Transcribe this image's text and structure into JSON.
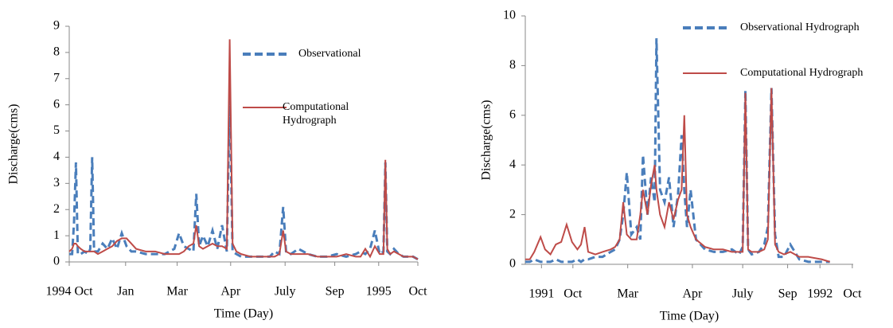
{
  "chart_data": [
    {
      "type": "line",
      "ylabel": "Discharge(cms)",
      "xlabel": "Time (Day)",
      "xlim": [
        0,
        365
      ],
      "ylim": [
        0,
        9
      ],
      "yticks": [
        0,
        1,
        2,
        3,
        4,
        5,
        6,
        7,
        8,
        9
      ],
      "xticks": [
        {
          "value": 0,
          "label": "1994 Oct"
        },
        {
          "value": 59,
          "label": "Jan"
        },
        {
          "value": 113,
          "label": "Mar"
        },
        {
          "value": 169,
          "label": "Apr"
        },
        {
          "value": 226,
          "label": "July"
        },
        {
          "value": 278,
          "label": "Sep"
        },
        {
          "value": 324,
          "label": "1995"
        },
        {
          "value": 365,
          "label": "Oct"
        }
      ],
      "x": [
        0,
        3,
        5,
        7,
        9,
        12,
        16,
        20,
        22,
        24,
        26,
        30,
        35,
        40,
        45,
        50,
        55,
        60,
        65,
        70,
        80,
        90,
        100,
        110,
        115,
        120,
        125,
        130,
        133,
        136,
        140,
        145,
        150,
        155,
        160,
        165,
        168,
        171,
        175,
        180,
        190,
        200,
        210,
        215,
        220,
        224,
        227,
        232,
        240,
        250,
        260,
        270,
        280,
        290,
        300,
        305,
        310,
        315,
        320,
        325,
        329,
        331,
        333,
        336,
        340,
        345,
        350,
        355,
        360,
        365
      ],
      "series": [
        {
          "name": "Observational",
          "color": "#4a7ebb",
          "dashed": true,
          "values": [
            0.3,
            0.3,
            1.5,
            3.8,
            0.3,
            0.3,
            0.4,
            0.3,
            0.5,
            4.0,
            0.4,
            0.4,
            0.7,
            0.5,
            0.9,
            0.5,
            1.1,
            0.6,
            0.4,
            0.4,
            0.3,
            0.3,
            0.3,
            0.5,
            1.1,
            0.6,
            0.5,
            0.4,
            2.6,
            0.6,
            1.0,
            0.6,
            1.2,
            0.5,
            1.4,
            0.4,
            6.4,
            0.4,
            0.3,
            0.2,
            0.2,
            0.2,
            0.2,
            0.4,
            0.3,
            2.1,
            0.4,
            0.3,
            0.5,
            0.3,
            0.2,
            0.2,
            0.3,
            0.2,
            0.3,
            0.4,
            0.3,
            0.5,
            1.2,
            0.3,
            0.4,
            3.8,
            0.4,
            0.3,
            0.5,
            0.3,
            0.2,
            0.2,
            0.2,
            0.1
          ]
        },
        {
          "name": "Computational Hydrograph",
          "color": "#be4b48",
          "dashed": false,
          "values": [
            0.4,
            0.5,
            0.7,
            0.7,
            0.6,
            0.5,
            0.4,
            0.4,
            0.4,
            0.4,
            0.4,
            0.3,
            0.4,
            0.5,
            0.6,
            0.8,
            0.9,
            0.9,
            0.7,
            0.5,
            0.4,
            0.4,
            0.3,
            0.3,
            0.3,
            0.4,
            0.6,
            0.7,
            1.4,
            0.6,
            0.5,
            0.6,
            0.7,
            0.6,
            0.6,
            0.5,
            8.5,
            0.7,
            0.4,
            0.3,
            0.2,
            0.2,
            0.2,
            0.2,
            0.3,
            1.2,
            0.4,
            0.3,
            0.3,
            0.3,
            0.2,
            0.2,
            0.2,
            0.3,
            0.2,
            0.2,
            0.5,
            0.2,
            0.6,
            0.3,
            0.3,
            3.9,
            0.5,
            0.3,
            0.4,
            0.3,
            0.2,
            0.2,
            0.2,
            0.1
          ]
        }
      ]
    },
    {
      "type": "line",
      "ylabel": "Discharge(cms)",
      "xlabel": "Time (Day)",
      "xlim": [
        0,
        365
      ],
      "ylim": [
        0,
        10
      ],
      "yticks": [
        0,
        2,
        4,
        6,
        8,
        10
      ],
      "xticks": [
        {
          "value": 18,
          "label": "1991"
        },
        {
          "value": 53,
          "label": "Oct"
        },
        {
          "value": 114,
          "label": "Mar"
        },
        {
          "value": 186,
          "label": "Apr"
        },
        {
          "value": 242,
          "label": "July"
        },
        {
          "value": 292,
          "label": "Sep"
        },
        {
          "value": 328,
          "label": "1992"
        },
        {
          "value": 364,
          "label": "Oct"
        }
      ],
      "x": [
        0,
        5,
        10,
        17,
        22,
        28,
        34,
        40,
        46,
        52,
        58,
        62,
        66,
        70,
        78,
        86,
        95,
        100,
        105,
        109,
        113,
        118,
        124,
        128,
        131,
        136,
        140,
        144,
        146,
        150,
        155,
        160,
        165,
        170,
        174,
        177,
        180,
        184,
        190,
        200,
        210,
        220,
        230,
        238,
        242,
        245,
        248,
        252,
        260,
        266,
        270,
        274,
        278,
        282,
        288,
        295,
        305,
        315,
        330,
        339
      ],
      "series": [
        {
          "name": "Observational Hydrograph",
          "color": "#4a7ebb",
          "dashed": true,
          "values": [
            0.1,
            0.1,
            0.2,
            0.1,
            0.1,
            0.1,
            0.2,
            0.1,
            0.1,
            0.1,
            0.2,
            0.1,
            0.2,
            0.2,
            0.3,
            0.3,
            0.5,
            0.6,
            1.0,
            2.0,
            3.7,
            1.2,
            1.5,
            1.0,
            4.4,
            2.0,
            3.5,
            2.5,
            9.1,
            3.0,
            2.5,
            3.5,
            1.5,
            2.8,
            5.2,
            3.0,
            1.5,
            3.0,
            1.0,
            0.6,
            0.5,
            0.5,
            0.6,
            0.4,
            0.7,
            7.0,
            0.6,
            0.4,
            0.5,
            0.8,
            1.5,
            7.1,
            1.2,
            0.3,
            0.3,
            0.8,
            0.2,
            0.1,
            0.1,
            0.1
          ]
        },
        {
          "name": "Computational Hydrograph",
          "color": "#be4b48",
          "dashed": false,
          "values": [
            0.2,
            0.2,
            0.5,
            1.1,
            0.6,
            0.4,
            0.8,
            0.9,
            1.6,
            0.9,
            0.6,
            0.8,
            1.5,
            0.5,
            0.4,
            0.5,
            0.6,
            0.7,
            1.0,
            2.5,
            1.2,
            1.0,
            1.0,
            2.0,
            3.0,
            2.0,
            3.2,
            4.0,
            3.0,
            2.0,
            1.5,
            2.5,
            1.8,
            2.6,
            3.0,
            6.0,
            2.0,
            1.5,
            1.0,
            0.7,
            0.6,
            0.6,
            0.5,
            0.5,
            0.5,
            6.9,
            0.6,
            0.5,
            0.5,
            0.6,
            1.0,
            7.1,
            0.8,
            0.5,
            0.4,
            0.5,
            0.3,
            0.3,
            0.2,
            0.1
          ]
        }
      ]
    }
  ]
}
